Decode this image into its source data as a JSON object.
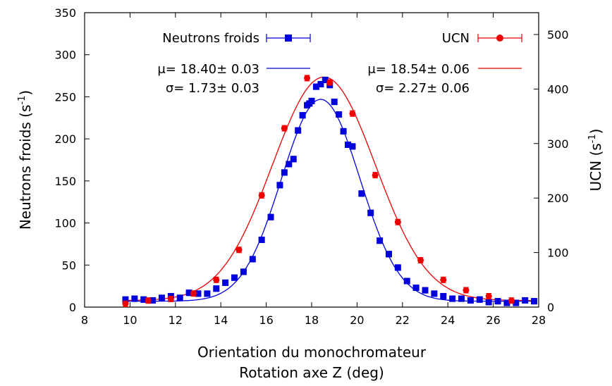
{
  "chart_data": {
    "type": "scatter",
    "xlabel": [
      "Orientation du monochromateur",
      "Rotation axe Z (deg)"
    ],
    "ylabel_left": "Neutrons froids (s",
    "ylabel_left_sup": "-1",
    "ylabel_left_close": ")",
    "ylabel_right": "UCN (s",
    "ylabel_right_sup": "-1",
    "ylabel_right_close": ")",
    "xlim": [
      8,
      28
    ],
    "ylim_left": [
      0,
      350
    ],
    "ylim_right": [
      0,
      540
    ],
    "x_ticks": [
      8,
      10,
      12,
      14,
      16,
      18,
      20,
      22,
      24,
      26,
      28
    ],
    "y_left_ticks": [
      0,
      50,
      100,
      150,
      200,
      250,
      300,
      350
    ],
    "y_right_ticks": [
      0,
      100,
      200,
      300,
      400,
      500
    ],
    "grid": false,
    "series": [
      {
        "name": "Neutrons froids",
        "axis": "left",
        "color": "#0000dd",
        "marker": "square",
        "fit_text": [
          "μ= 18.40± 0.03",
          "σ= 1.73± 0.03"
        ],
        "fit": {
          "amplitude": 240,
          "mu": 18.4,
          "sigma": 1.73,
          "baseline": 7
        },
        "x": [
          9.8,
          10.2,
          10.6,
          11.0,
          11.4,
          11.8,
          12.2,
          12.6,
          13.0,
          13.4,
          13.8,
          14.2,
          14.6,
          15.0,
          15.4,
          15.8,
          16.2,
          16.6,
          16.8,
          17.0,
          17.2,
          17.4,
          17.6,
          17.8,
          17.9,
          18.0,
          18.2,
          18.4,
          18.6,
          18.8,
          19.0,
          19.2,
          19.4,
          19.6,
          19.8,
          20.2,
          20.6,
          21.0,
          21.4,
          21.8,
          22.2,
          22.6,
          23.0,
          23.4,
          23.8,
          24.2,
          24.6,
          25.0,
          25.4,
          25.8,
          26.2,
          26.6,
          27.0,
          27.4,
          27.8
        ],
        "y": [
          9,
          10,
          9,
          8,
          11,
          13,
          11,
          17,
          16,
          16,
          22,
          29,
          35,
          42,
          57,
          80,
          107,
          145,
          160,
          170,
          176,
          210,
          228,
          240,
          242,
          245,
          262,
          265,
          270,
          264,
          244,
          229,
          209,
          193,
          191,
          135,
          112,
          79,
          63,
          47,
          31,
          23,
          20,
          16,
          13,
          10,
          10,
          8,
          9,
          6,
          7,
          5,
          5,
          8,
          7
        ]
      },
      {
        "name": "UCN",
        "axis": "right",
        "color": "#ee0000",
        "marker": "circle",
        "fit_text": [
          "μ= 18.54± 0.06",
          "σ= 2.27± 0.06"
        ],
        "fit": {
          "amplitude": 410,
          "mu": 18.54,
          "sigma": 2.27,
          "baseline": 12
        },
        "x": [
          9.8,
          10.8,
          11.8,
          12.8,
          13.8,
          14.8,
          15.8,
          16.8,
          17.8,
          18.8,
          19.8,
          20.8,
          21.8,
          22.8,
          23.8,
          24.8,
          25.8,
          26.8
        ],
        "y": [
          6,
          12,
          15,
          25,
          50,
          105,
          205,
          328,
          420,
          412,
          355,
          242,
          156,
          86,
          50,
          31,
          20,
          12
        ]
      }
    ]
  }
}
